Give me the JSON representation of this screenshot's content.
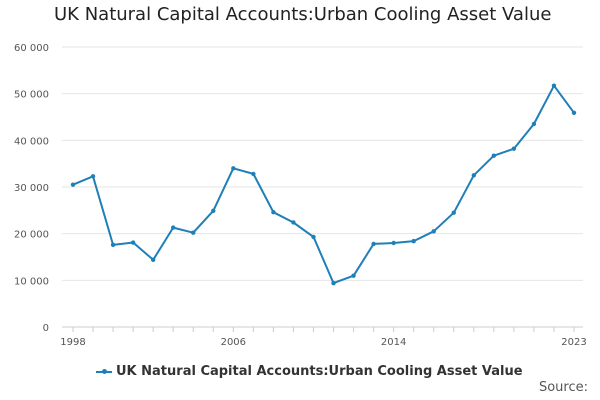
{
  "title": "UK Natural Capital Accounts:Urban Cooling Asset Value",
  "legend_label": "UK Natural Capital Accounts:Urban Cooling Asset Value",
  "source_label": "Source:",
  "colors": {
    "series": "#1f7fb8",
    "grid": "#e6e6e6",
    "axis": "#cccccc",
    "text": "#555555"
  },
  "chart_data": {
    "type": "line",
    "title": "UK Natural Capital Accounts:Urban Cooling Asset Value",
    "xlabel": "",
    "ylabel": "",
    "ylim": [
      0,
      60000
    ],
    "yticks": [
      0,
      10000,
      20000,
      30000,
      40000,
      50000,
      60000
    ],
    "ytick_labels": [
      "0",
      "10 000",
      "20 000",
      "30 000",
      "40 000",
      "50 000",
      "60 000"
    ],
    "xlim": [
      1998,
      2023
    ],
    "xticks": [
      1998,
      2006,
      2014,
      2023
    ],
    "xtick_labels": [
      "1998",
      "2006",
      "2014",
      "2023"
    ],
    "grid": "horizontal",
    "legend_position": "bottom",
    "series": [
      {
        "name": "UK Natural Capital Accounts:Urban Cooling Asset Value",
        "x": [
          1998,
          1999,
          2000,
          2001,
          2002,
          2003,
          2004,
          2005,
          2006,
          2007,
          2008,
          2009,
          2010,
          2011,
          2012,
          2013,
          2014,
          2015,
          2016,
          2017,
          2018,
          2019,
          2020,
          2021,
          2022,
          2023
        ],
        "values": [
          30500,
          32300,
          17600,
          18100,
          14400,
          21300,
          20200,
          24900,
          34000,
          32800,
          24600,
          22400,
          19300,
          9400,
          11000,
          17800,
          18000,
          18400,
          20500,
          24500,
          32500,
          36700,
          38200,
          43500,
          51700,
          45900
        ]
      }
    ]
  }
}
